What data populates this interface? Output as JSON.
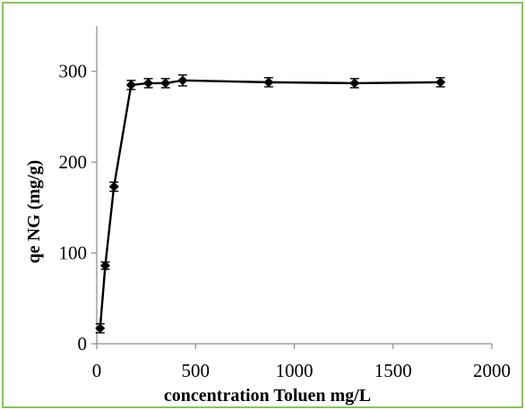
{
  "chart_data": {
    "type": "scatter",
    "title": "",
    "xlabel": "concentration Toluen mg/L",
    "ylabel": "qe NG  (mg/g)",
    "xlim": [
      0,
      2000
    ],
    "ylim": [
      0,
      350
    ],
    "x_ticks": [
      0,
      500,
      1000,
      1500,
      2000
    ],
    "y_ticks": [
      0,
      100,
      200,
      300
    ],
    "grid": false,
    "legend": "none",
    "series": [
      {
        "x": [
          17,
          43,
          87,
          174,
          261,
          348,
          435,
          870,
          1305,
          1740
        ],
        "y": [
          17,
          86,
          173,
          285,
          287,
          287,
          290,
          288,
          287,
          288
        ],
        "error": [
          5,
          4,
          5,
          5,
          5,
          5,
          6,
          5,
          5,
          5
        ],
        "line": "straight-with-markers",
        "marker": "diamond",
        "color": "#000000"
      }
    ],
    "frame_color": "#8cc063"
  }
}
